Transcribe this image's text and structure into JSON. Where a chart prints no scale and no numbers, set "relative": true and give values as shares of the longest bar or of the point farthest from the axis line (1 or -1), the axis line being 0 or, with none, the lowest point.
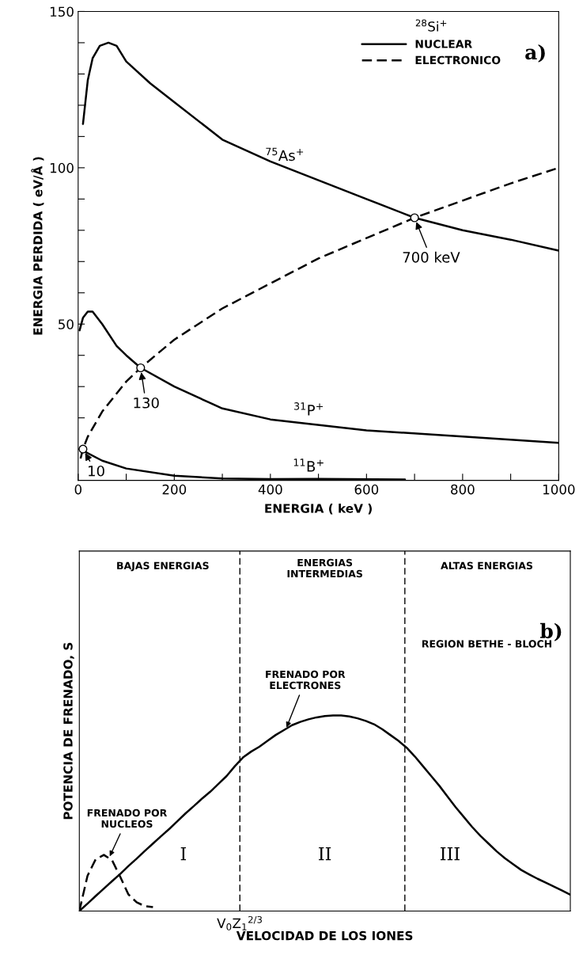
{
  "chart_data": [
    {
      "type": "line",
      "xlabel": "ENERGIA ( keV )",
      "ylabel": "ENERGIA PERDIDA ( eV/Å )",
      "legend_title": "$^{28}$Si$^{+}$",
      "legend": "top right",
      "xlim": [
        0,
        1000
      ],
      "ylim": [
        0,
        150
      ],
      "xticks": [
        0,
        {
          "value": 100,
          "label": null
        },
        200,
        {
          "value": 300,
          "label": null
        },
        400,
        {
          "value": 500,
          "label": null
        },
        600,
        {
          "value": 700,
          "label": null
        },
        800,
        {
          "value": 900,
          "label": null
        },
        1000
      ],
      "yticks": [
        {
          "value": 10,
          "label": null
        },
        {
          "value": 20,
          "label": null
        },
        {
          "value": 30,
          "label": null
        },
        {
          "value": 40,
          "label": null
        },
        50,
        {
          "value": 60,
          "label": null
        },
        {
          "value": 70,
          "label": null
        },
        {
          "value": 80,
          "label": null
        },
        {
          "value": 90,
          "label": null
        },
        100,
        {
          "value": 110,
          "label": null
        },
        {
          "value": 120,
          "label": null
        },
        {
          "value": 130,
          "label": null
        },
        {
          "value": 140,
          "label": null
        },
        150
      ],
      "series": [
        {
          "name": "NUCLEAR",
          "color": "#000000",
          "line_style": "solid",
          "x": [
            10,
            20,
            30,
            45,
            63,
            80,
            100,
            150,
            200,
            300,
            400,
            500,
            600,
            700,
            800,
            900,
            1000
          ],
          "values": [
            114,
            128,
            135,
            139,
            140,
            139,
            134,
            127,
            121,
            109,
            102,
            96,
            90,
            84,
            80,
            77,
            73.5
          ]
        },
        {
          "color": "#000000",
          "line_style": "solid",
          "x": [
            3,
            10,
            20,
            30,
            50,
            80,
            100,
            130,
            200,
            300,
            400,
            600,
            800,
            1000
          ],
          "values": [
            48,
            52,
            54,
            54,
            50,
            43,
            40,
            36,
            30,
            23,
            19.5,
            16,
            14,
            12
          ]
        },
        {
          "color": "#000000",
          "line_style": "solid",
          "x": [
            10,
            50,
            100,
            200,
            300,
            400,
            500,
            680
          ],
          "values": [
            9.5,
            6.3,
            3.8,
            1.5,
            0.6,
            0.4,
            0.5,
            0.3
          ]
        },
        {
          "name": "ELECTRONICO",
          "color": "#000000",
          "line_style": "dashed",
          "x": [
            5,
            10,
            20,
            50,
            100,
            130,
            200,
            300,
            400,
            500,
            600,
            700,
            800,
            900,
            1000
          ],
          "values": [
            7,
            10,
            14,
            22,
            31.6,
            36,
            45,
            55,
            63,
            71,
            77.5,
            84,
            89.5,
            95,
            100
          ]
        }
      ],
      "annotations": [
        "$^{75}$As$^{+}$",
        "$^{31}$P$^{+}$",
        "$^{11}$B$^{+}$",
        {
          "text": "700 keV",
          "x": 700,
          "y": 84
        },
        {
          "text": "130",
          "x": 130,
          "y": 36
        },
        {
          "text": "10",
          "x": 10,
          "y": 10
        },
        "a)"
      ]
    },
    {
      "type": "line",
      "relative": true,
      "xlabel": "VELOCIDAD DE LOS IONES",
      "ylabel": "POTENCIA DE FRENADO, S",
      "categories": [
        null,
        null,
        null,
        null,
        null,
        null,
        null,
        null,
        null,
        null,
        null,
        null,
        null,
        null,
        null,
        null,
        null,
        null,
        null,
        null,
        null,
        null,
        null,
        null,
        null,
        null,
        null,
        null,
        null,
        null,
        null,
        null,
        null,
        null,
        null,
        null,
        null,
        null,
        null,
        null,
        null,
        null,
        null,
        null,
        null,
        null,
        null,
        null,
        null,
        null,
        null,
        null,
        null,
        null,
        null,
        null,
        null,
        null,
        null,
        null,
        null
      ],
      "series": [
        {
          "color": "#000000",
          "line_style": "solid",
          "values": [
            0,
            0.038,
            0.077,
            0.115,
            0.153,
            0.19,
            0.23,
            0.268,
            0.307,
            0.345,
            0.383,
            0.42,
            0.46,
            0.5,
            0.537,
            0.575,
            0.61,
            0.65,
            0.69,
            0.74,
            0.785,
            0.815,
            0.84,
            0.87,
            0.9,
            0.925,
            0.95,
            0.967,
            0.98,
            0.99,
            0.997,
            1.0,
            1.0,
            0.995,
            0.985,
            0.972,
            0.955,
            0.93,
            0.9,
            0.87,
            0.835,
            0.79,
            0.74,
            0.69,
            0.64,
            0.585,
            0.53,
            0.48,
            0.43,
            0.385,
            0.345,
            0.305,
            0.27,
            0.24,
            0.21,
            0.187,
            0.165,
            0.145,
            0.125,
            0.105,
            0.084
          ]
        },
        {
          "color": "#000000",
          "line_style": "dashed",
          "values": [
            0,
            0.18,
            0.265,
            0.287,
            0.26,
            0.175,
            0.085,
            0.045,
            0.025,
            0.02,
            null,
            null,
            null,
            null,
            null,
            null,
            null,
            null,
            null,
            null,
            null,
            null,
            null,
            null,
            null,
            null,
            null,
            null,
            null,
            null,
            null,
            null,
            null,
            null,
            null,
            null,
            null,
            null,
            null,
            null,
            null,
            null,
            null,
            null,
            null,
            null,
            null,
            null,
            null,
            null,
            null,
            null,
            null,
            null,
            null,
            null,
            null,
            null,
            null,
            null,
            null
          ]
        }
      ],
      "annotations": [
        "BAJAS ENERGIAS",
        "ENERGIAS\nINTERMEDIAS",
        "ALTAS ENERGIAS",
        "REGION BETHE - BLOCH",
        "I",
        "II",
        "III",
        "FRENADO POR\nELECTRONES",
        "FRENADO POR\nNUCLEOS",
        "b)",
        "V$_{0}$Z$_{1}$$^{2/3}$"
      ]
    }
  ]
}
